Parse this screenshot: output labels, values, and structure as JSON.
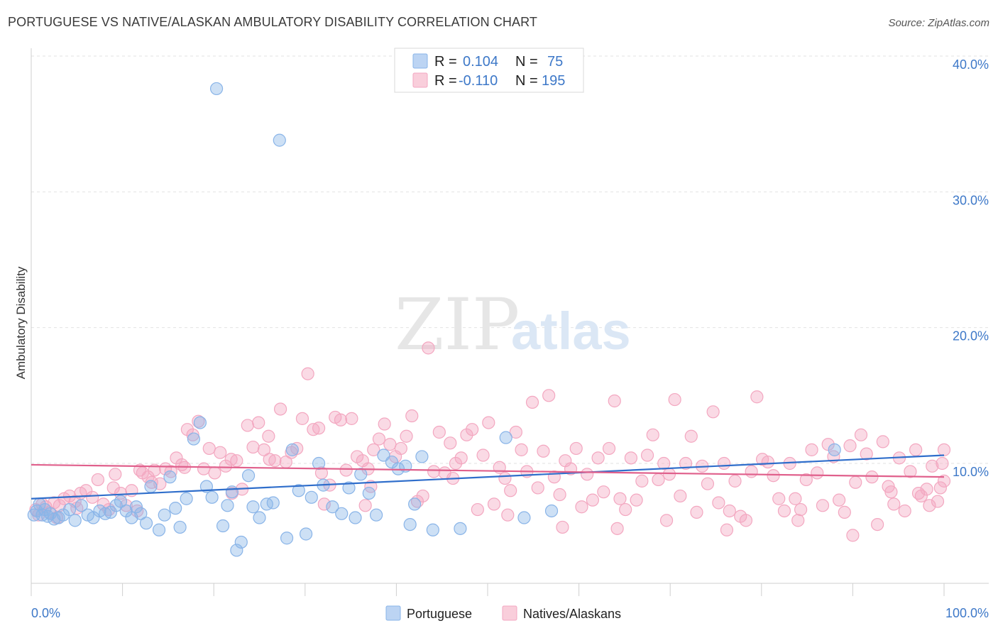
{
  "title": "PORTUGUESE VS NATIVE/ALASKAN AMBULATORY DISABILITY CORRELATION CHART",
  "source": "Source: ZipAtlas.com",
  "watermark": {
    "zip": "ZIP",
    "atlas": "atlas"
  },
  "chart_data": {
    "type": "scatter",
    "ylabel": "Ambulatory Disability",
    "xlim": [
      0,
      100
    ],
    "ylim": [
      0,
      42
    ],
    "x_tick_labels": [
      "0.0%",
      "100.0%"
    ],
    "y_ticks": [
      10,
      20,
      30,
      40
    ],
    "y_tick_labels": [
      "10.0%",
      "20.0%",
      "30.0%",
      "40.0%"
    ],
    "grid": true,
    "legend_position": "top-center",
    "stats": [
      {
        "r_label": "R =",
        "r": "0.104",
        "n_label": "N =",
        "n": "75"
      },
      {
        "r_label": "R =",
        "r": "-0.110",
        "n_label": "N =",
        "n": "195"
      }
    ],
    "series": [
      {
        "name": "Portuguese",
        "color": "#89b4e8",
        "line_color": "#2f6ecb",
        "trend": [
          [
            0,
            7.4
          ],
          [
            100,
            10.6
          ]
        ],
        "points": [
          [
            0.3,
            6.2
          ],
          [
            0.6,
            6.5
          ],
          [
            0.9,
            7.0
          ],
          [
            1.2,
            6.2
          ],
          [
            1.5,
            6.6
          ],
          [
            1.8,
            6.1
          ],
          [
            2.1,
            6.3
          ],
          [
            2.5,
            5.9
          ],
          [
            3.0,
            6.0
          ],
          [
            3.5,
            6.2
          ],
          [
            4.2,
            6.6
          ],
          [
            4.8,
            5.8
          ],
          [
            5.5,
            6.9
          ],
          [
            6.2,
            6.2
          ],
          [
            6.8,
            6.0
          ],
          [
            7.5,
            6.5
          ],
          [
            8.1,
            6.3
          ],
          [
            8.7,
            6.4
          ],
          [
            9.3,
            6.9
          ],
          [
            9.8,
            7.2
          ],
          [
            10.4,
            6.5
          ],
          [
            11.0,
            6.0
          ],
          [
            11.5,
            6.8
          ],
          [
            12.0,
            6.3
          ],
          [
            12.6,
            5.6
          ],
          [
            13.1,
            8.3
          ],
          [
            14.0,
            5.1
          ],
          [
            14.6,
            6.2
          ],
          [
            15.2,
            9.0
          ],
          [
            15.8,
            6.7
          ],
          [
            16.3,
            5.3
          ],
          [
            17.0,
            7.4
          ],
          [
            17.8,
            11.8
          ],
          [
            18.5,
            13.0
          ],
          [
            19.2,
            8.3
          ],
          [
            19.8,
            7.5
          ],
          [
            20.3,
            37.6
          ],
          [
            21.0,
            5.4
          ],
          [
            21.5,
            6.9
          ],
          [
            22.0,
            7.9
          ],
          [
            22.5,
            3.6
          ],
          [
            23.0,
            4.2
          ],
          [
            23.8,
            9.1
          ],
          [
            24.3,
            6.8
          ],
          [
            25.0,
            6.0
          ],
          [
            25.8,
            7.0
          ],
          [
            26.5,
            7.1
          ],
          [
            27.2,
            33.8
          ],
          [
            28.0,
            4.5
          ],
          [
            28.6,
            11.0
          ],
          [
            29.3,
            8.0
          ],
          [
            30.1,
            4.8
          ],
          [
            30.7,
            7.5
          ],
          [
            31.5,
            10.0
          ],
          [
            32.0,
            8.4
          ],
          [
            33.0,
            6.8
          ],
          [
            34.0,
            6.3
          ],
          [
            34.8,
            8.2
          ],
          [
            35.5,
            6.0
          ],
          [
            36.1,
            9.2
          ],
          [
            37.0,
            7.8
          ],
          [
            37.8,
            6.2
          ],
          [
            38.6,
            10.6
          ],
          [
            39.5,
            10.1
          ],
          [
            40.2,
            9.6
          ],
          [
            41.0,
            9.8
          ],
          [
            41.5,
            5.5
          ],
          [
            42.0,
            7.0
          ],
          [
            42.8,
            10.5
          ],
          [
            44.0,
            5.1
          ],
          [
            47.0,
            5.2
          ],
          [
            52.0,
            11.9
          ],
          [
            54.0,
            6.0
          ],
          [
            57.0,
            6.5
          ],
          [
            88.0,
            11.0
          ]
        ]
      },
      {
        "name": "Natives/Alaskans",
        "color": "#f3a7c0",
        "line_color": "#e0608c",
        "trend": [
          [
            0,
            9.9
          ],
          [
            100,
            9.0
          ]
        ],
        "points": [
          [
            0.5,
            6.6
          ],
          [
            0.8,
            6.2
          ],
          [
            1.2,
            7.0
          ],
          [
            1.6,
            6.8
          ],
          [
            2.0,
            6.4
          ],
          [
            2.5,
            7.1
          ],
          [
            3.1,
            6.9
          ],
          [
            3.6,
            7.4
          ],
          [
            4.2,
            7.6
          ],
          [
            4.8,
            7.2
          ],
          [
            5.4,
            7.8
          ],
          [
            6.0,
            8.0
          ],
          [
            6.7,
            7.5
          ],
          [
            7.3,
            8.8
          ],
          [
            7.9,
            7.0
          ],
          [
            8.5,
            6.6
          ],
          [
            9.2,
            9.2
          ],
          [
            9.8,
            7.8
          ],
          [
            10.4,
            6.9
          ],
          [
            11.0,
            8.0
          ],
          [
            11.6,
            6.5
          ],
          [
            12.2,
            9.3
          ],
          [
            12.8,
            9.0
          ],
          [
            13.5,
            9.5
          ],
          [
            14.1,
            8.5
          ],
          [
            14.7,
            9.6
          ],
          [
            15.3,
            9.4
          ],
          [
            15.9,
            10.4
          ],
          [
            16.5,
            9.9
          ],
          [
            17.1,
            12.5
          ],
          [
            17.7,
            12.1
          ],
          [
            18.3,
            13.1
          ],
          [
            18.9,
            9.6
          ],
          [
            19.5,
            11.1
          ],
          [
            20.1,
            9.3
          ],
          [
            20.7,
            10.8
          ],
          [
            21.3,
            9.8
          ],
          [
            21.9,
            10.3
          ],
          [
            22.5,
            10.2
          ],
          [
            23.1,
            8.1
          ],
          [
            23.7,
            12.8
          ],
          [
            24.3,
            11.2
          ],
          [
            24.9,
            13.0
          ],
          [
            25.5,
            11.0
          ],
          [
            26.1,
            10.3
          ],
          [
            26.7,
            10.2
          ],
          [
            27.3,
            14.0
          ],
          [
            27.9,
            10.1
          ],
          [
            28.5,
            10.8
          ],
          [
            29.1,
            11.1
          ],
          [
            29.7,
            13.3
          ],
          [
            30.3,
            16.6
          ],
          [
            30.9,
            12.5
          ],
          [
            31.5,
            12.6
          ],
          [
            32.1,
            7.0
          ],
          [
            32.7,
            8.4
          ],
          [
            33.3,
            13.4
          ],
          [
            33.9,
            13.2
          ],
          [
            34.5,
            9.5
          ],
          [
            35.1,
            13.3
          ],
          [
            35.7,
            10.5
          ],
          [
            36.3,
            10.2
          ],
          [
            36.9,
            9.6
          ],
          [
            37.5,
            11.0
          ],
          [
            38.1,
            11.8
          ],
          [
            38.7,
            12.9
          ],
          [
            39.3,
            11.4
          ],
          [
            39.9,
            10.5
          ],
          [
            40.5,
            11.1
          ],
          [
            41.1,
            12.0
          ],
          [
            41.7,
            13.5
          ],
          [
            42.3,
            7.2
          ],
          [
            42.9,
            7.6
          ],
          [
            43.5,
            18.5
          ],
          [
            44.1,
            9.4
          ],
          [
            44.7,
            12.3
          ],
          [
            45.3,
            9.3
          ],
          [
            45.9,
            11.5
          ],
          [
            46.5,
            10.0
          ],
          [
            47.1,
            10.4
          ],
          [
            47.7,
            12.1
          ],
          [
            48.3,
            12.5
          ],
          [
            48.9,
            6.6
          ],
          [
            49.5,
            10.6
          ],
          [
            50.1,
            13.0
          ],
          [
            50.7,
            7.0
          ],
          [
            51.3,
            9.7
          ],
          [
            51.9,
            8.9
          ],
          [
            52.5,
            8.0
          ],
          [
            53.1,
            12.3
          ],
          [
            53.7,
            11.0
          ],
          [
            54.3,
            9.4
          ],
          [
            54.9,
            14.5
          ],
          [
            55.5,
            8.2
          ],
          [
            56.1,
            10.9
          ],
          [
            56.7,
            15.0
          ],
          [
            57.3,
            9.0
          ],
          [
            57.9,
            7.7
          ],
          [
            58.5,
            10.2
          ],
          [
            59.1,
            9.6
          ],
          [
            59.7,
            11.1
          ],
          [
            60.3,
            6.8
          ],
          [
            60.9,
            9.2
          ],
          [
            61.5,
            7.3
          ],
          [
            62.1,
            10.4
          ],
          [
            62.7,
            7.9
          ],
          [
            63.3,
            11.1
          ],
          [
            63.9,
            14.6
          ],
          [
            64.5,
            7.4
          ],
          [
            65.1,
            6.6
          ],
          [
            65.7,
            10.4
          ],
          [
            66.3,
            7.3
          ],
          [
            66.9,
            8.7
          ],
          [
            67.5,
            10.6
          ],
          [
            68.1,
            12.1
          ],
          [
            68.7,
            8.8
          ],
          [
            69.3,
            10.0
          ],
          [
            69.9,
            9.2
          ],
          [
            70.5,
            14.7
          ],
          [
            71.1,
            7.6
          ],
          [
            71.7,
            10.0
          ],
          [
            72.3,
            12.0
          ],
          [
            72.9,
            6.4
          ],
          [
            73.5,
            9.8
          ],
          [
            74.1,
            8.5
          ],
          [
            74.7,
            13.8
          ],
          [
            75.3,
            7.1
          ],
          [
            75.9,
            10.0
          ],
          [
            76.5,
            6.5
          ],
          [
            77.1,
            8.7
          ],
          [
            77.7,
            6.1
          ],
          [
            78.3,
            5.8
          ],
          [
            78.9,
            9.4
          ],
          [
            79.5,
            14.9
          ],
          [
            80.1,
            10.3
          ],
          [
            80.7,
            10.1
          ],
          [
            81.3,
            9.1
          ],
          [
            81.9,
            7.4
          ],
          [
            82.5,
            6.5
          ],
          [
            83.1,
            10.0
          ],
          [
            83.7,
            7.4
          ],
          [
            84.3,
            6.6
          ],
          [
            84.9,
            8.8
          ],
          [
            85.5,
            11.0
          ],
          [
            86.1,
            9.3
          ],
          [
            86.7,
            6.9
          ],
          [
            87.3,
            11.4
          ],
          [
            87.9,
            10.5
          ],
          [
            88.5,
            7.3
          ],
          [
            89.1,
            6.4
          ],
          [
            89.7,
            11.3
          ],
          [
            90.3,
            8.6
          ],
          [
            90.9,
            12.1
          ],
          [
            91.5,
            10.7
          ],
          [
            92.1,
            9.0
          ],
          [
            92.7,
            5.5
          ],
          [
            93.3,
            11.6
          ],
          [
            93.9,
            8.3
          ],
          [
            94.5,
            7.0
          ],
          [
            95.1,
            10.4
          ],
          [
            95.7,
            6.5
          ],
          [
            96.3,
            9.4
          ],
          [
            96.9,
            11.0
          ],
          [
            97.5,
            7.6
          ],
          [
            98.1,
            8.1
          ],
          [
            98.7,
            9.8
          ],
          [
            99.3,
            7.2
          ],
          [
            99.6,
            8.2
          ],
          [
            99.8,
            10.0
          ],
          [
            100.0,
            11.0
          ],
          [
            2.8,
            6.0
          ],
          [
            5.0,
            6.7
          ],
          [
            13.2,
            8.6
          ],
          [
            16.8,
            9.7
          ],
          [
            22.0,
            7.8
          ],
          [
            31.8,
            9.3
          ],
          [
            36.6,
            6.9
          ],
          [
            46.2,
            8.9
          ],
          [
            52.2,
            6.2
          ],
          [
            58.2,
            5.3
          ],
          [
            64.2,
            5.2
          ],
          [
            69.6,
            5.8
          ],
          [
            76.2,
            5.1
          ],
          [
            84.0,
            5.8
          ],
          [
            90.0,
            4.7
          ],
          [
            94.2,
            7.9
          ],
          [
            97.2,
            7.8
          ],
          [
            98.4,
            6.9
          ],
          [
            100.0,
            8.7
          ],
          [
            9.0,
            8.2
          ],
          [
            11.9,
            9.5
          ],
          [
            26.0,
            12.0
          ],
          [
            37.2,
            8.3
          ]
        ]
      }
    ]
  }
}
